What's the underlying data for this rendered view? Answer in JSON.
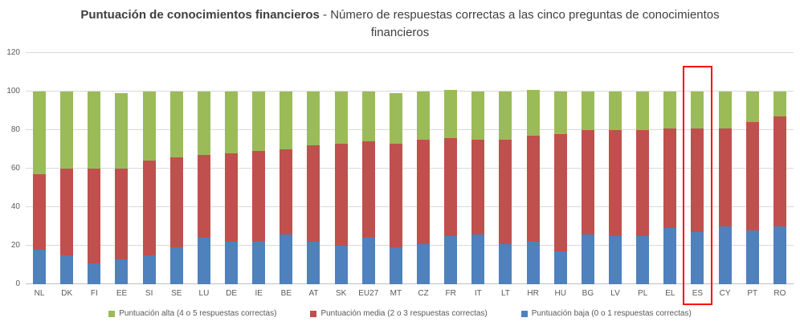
{
  "title": {
    "bold": "Puntuación de conocimientos financieros",
    "rest": " - Número de respuestas correctas a las cinco preguntas de conocimientos financieros"
  },
  "colors": {
    "high": "#9BBB59",
    "medium": "#C0504D",
    "low": "#4F81BD",
    "highlight_box": "#FF0000",
    "gridline": "#D9D9D9",
    "axis_text": "#595959"
  },
  "highlight_category": "ES",
  "chart_data": {
    "type": "bar",
    "stacked": true,
    "title": "Puntuación de conocimientos financieros - Número de respuestas correctas a las cinco preguntas de conocimientos financieros",
    "categories": [
      "NL",
      "DK",
      "FI",
      "EE",
      "SI",
      "SE",
      "LU",
      "DE",
      "IE",
      "BE",
      "AT",
      "SK",
      "EU27",
      "MT",
      "CZ",
      "FR",
      "IT",
      "LT",
      "HR",
      "HU",
      "BG",
      "LV",
      "PL",
      "EL",
      "ES",
      "CY",
      "PT",
      "RO"
    ],
    "series": [
      {
        "name": "Puntuación baja (0 o 1 respuestas correctas)",
        "color": "#4F81BD",
        "values": [
          18,
          15,
          11,
          13,
          15,
          19,
          24,
          22,
          22,
          26,
          22,
          20,
          24,
          19,
          21,
          25,
          26,
          21,
          22,
          17,
          26,
          25,
          25,
          29,
          27,
          30,
          28,
          30
        ]
      },
      {
        "name": "Puntuación media (2 o 3 respuestas correctas)",
        "color": "#C0504D",
        "values": [
          39,
          45,
          49,
          47,
          49,
          47,
          43,
          46,
          47,
          44,
          50,
          53,
          50,
          54,
          54,
          51,
          49,
          54,
          55,
          61,
          54,
          55,
          55,
          52,
          54,
          51,
          56,
          57
        ]
      },
      {
        "name": "Puntuación alta (4 o 5 respuestas correctas)",
        "color": "#9BBB59",
        "values": [
          43,
          40,
          40,
          39,
          36,
          34,
          33,
          32,
          31,
          30,
          28,
          27,
          26,
          26,
          25,
          25,
          25,
          25,
          24,
          22,
          20,
          20,
          20,
          19,
          19,
          19,
          16,
          13
        ]
      }
    ],
    "ylim": [
      0,
      120
    ],
    "yticks": [
      0,
      20,
      40,
      60,
      80,
      100,
      120
    ],
    "grid": true,
    "legend_position": "bottom"
  },
  "legend": {
    "items": [
      {
        "label": "Puntuación alta (4 o 5 respuestas correctas)",
        "color": "#9BBB59"
      },
      {
        "label": "Puntuación media (2 o 3 respuestas correctas)",
        "color": "#C0504D"
      },
      {
        "label": "Puntuación baja (0 o 1 respuestas correctas)",
        "color": "#4F81BD"
      }
    ]
  }
}
